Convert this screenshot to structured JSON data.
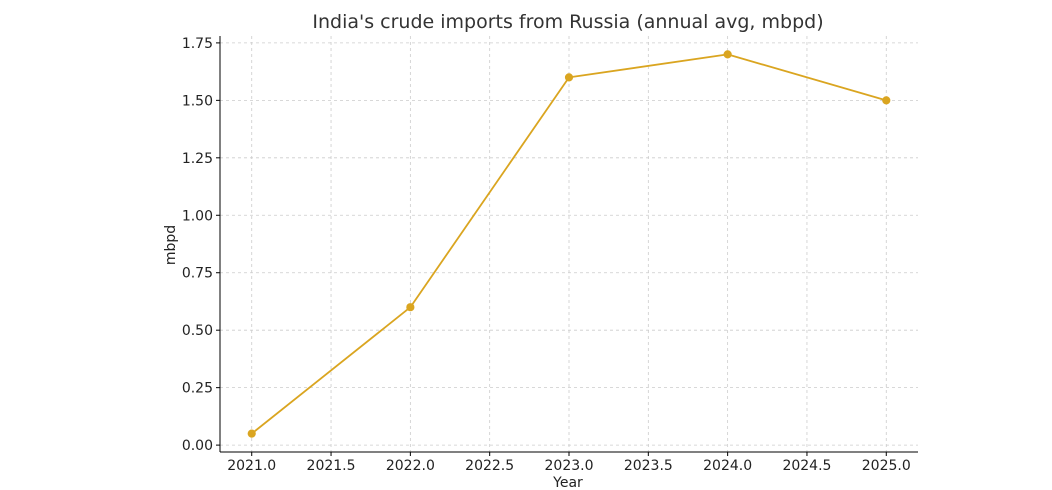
{
  "chart_data": {
    "type": "line",
    "title": "India's crude imports from Russia (annual avg, mbpd)",
    "xlabel": "Year",
    "ylabel": "mbpd",
    "xlim": [
      2020.8,
      2025.2
    ],
    "ylim": [
      -0.03,
      1.78
    ],
    "x_ticks": [
      2021.0,
      2021.5,
      2022.0,
      2022.5,
      2023.0,
      2023.5,
      2024.0,
      2024.5,
      2025.0
    ],
    "x_tick_labels": [
      "2021.0",
      "2021.5",
      "2022.0",
      "2022.5",
      "2023.0",
      "2023.5",
      "2024.0",
      "2024.5",
      "2025.0"
    ],
    "y_ticks": [
      0.0,
      0.25,
      0.5,
      0.75,
      1.0,
      1.25,
      1.5,
      1.75
    ],
    "y_tick_labels": [
      "0.00",
      "0.25",
      "0.50",
      "0.75",
      "1.00",
      "1.25",
      "1.50",
      "1.75"
    ],
    "grid": true,
    "series": [
      {
        "x": [
          2021,
          2022,
          2023,
          2024,
          2025
        ],
        "values": [
          0.05,
          0.6,
          1.6,
          1.7,
          1.5
        ],
        "color": "#DAA520",
        "marker": "circle"
      }
    ]
  }
}
